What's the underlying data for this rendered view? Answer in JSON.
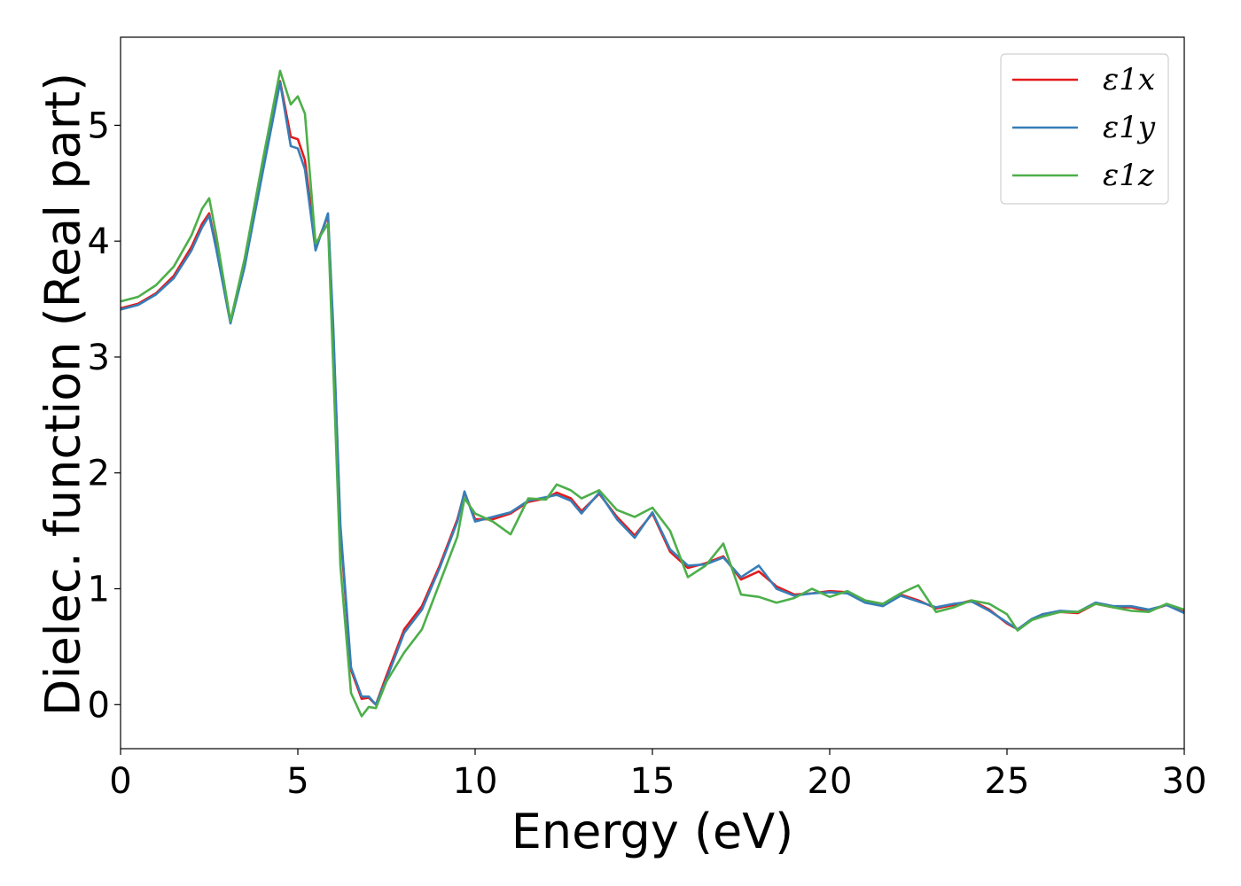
{
  "chart_data": {
    "type": "line",
    "xlabel": "Energy (eV)",
    "ylabel": "Dielec. function (Real part)",
    "xlim": [
      0,
      30
    ],
    "ylim": [
      -0.38,
      5.76
    ],
    "xticks": [
      "0",
      "5",
      "10",
      "15",
      "20",
      "25",
      "30"
    ],
    "yticks": [
      "0",
      "1",
      "2",
      "3",
      "4",
      "5"
    ],
    "grid": false,
    "legend_position": "top-right",
    "series": [
      {
        "name": "ε1x",
        "color": "#e41a1c",
        "x": [
          0,
          0.5,
          1,
          1.5,
          2,
          2.3,
          2.5,
          2.7,
          3.1,
          3.5,
          4,
          4.5,
          4.8,
          5.0,
          5.2,
          5.5,
          5.85,
          6.0,
          6.2,
          6.5,
          6.8,
          7.0,
          7.2,
          7.5,
          8.0,
          8.5,
          9.0,
          9.5,
          9.7,
          10.0,
          10.5,
          11.0,
          11.5,
          12.0,
          12.3,
          12.7,
          13.0,
          13.5,
          14.0,
          14.5,
          15.0,
          15.5,
          16.0,
          16.5,
          17.0,
          17.5,
          18.0,
          18.5,
          19.0,
          19.5,
          20.0,
          20.5,
          21.0,
          21.5,
          22.0,
          22.5,
          23.0,
          23.5,
          24.0,
          24.5,
          25.0,
          25.3,
          25.7,
          26.0,
          26.5,
          27.0,
          27.5,
          28.0,
          28.5,
          29.0,
          29.5,
          30.0
        ],
        "y": [
          3.42,
          3.46,
          3.55,
          3.7,
          3.95,
          4.15,
          4.24,
          3.95,
          3.3,
          3.8,
          4.6,
          5.38,
          4.9,
          4.88,
          4.7,
          3.95,
          4.22,
          3.2,
          1.5,
          0.3,
          0.05,
          0.06,
          0.0,
          0.25,
          0.65,
          0.85,
          1.2,
          1.6,
          1.83,
          1.6,
          1.6,
          1.65,
          1.75,
          1.78,
          1.83,
          1.78,
          1.67,
          1.82,
          1.62,
          1.46,
          1.65,
          1.32,
          1.18,
          1.22,
          1.28,
          1.08,
          1.15,
          1.02,
          0.95,
          0.96,
          0.98,
          0.97,
          0.89,
          0.86,
          0.95,
          0.9,
          0.83,
          0.86,
          0.9,
          0.82,
          0.7,
          0.65,
          0.73,
          0.78,
          0.8,
          0.79,
          0.87,
          0.84,
          0.84,
          0.81,
          0.86,
          0.8
        ]
      },
      {
        "name": "ε1y",
        "color": "#377eb8",
        "x": [
          0,
          0.5,
          1,
          1.5,
          2,
          2.3,
          2.5,
          2.7,
          3.1,
          3.5,
          4,
          4.5,
          4.8,
          5.0,
          5.2,
          5.5,
          5.85,
          6.0,
          6.2,
          6.5,
          6.8,
          7.0,
          7.2,
          7.5,
          8.0,
          8.5,
          9.0,
          9.5,
          9.7,
          10.0,
          10.5,
          11.0,
          11.5,
          12.0,
          12.3,
          12.7,
          13.0,
          13.5,
          14.0,
          14.5,
          15.0,
          15.5,
          16.0,
          16.5,
          17.0,
          17.5,
          18.0,
          18.5,
          19.0,
          19.5,
          20.0,
          20.5,
          21.0,
          21.5,
          22.0,
          22.5,
          23.0,
          23.5,
          24.0,
          24.5,
          25.0,
          25.3,
          25.7,
          26.0,
          26.5,
          27.0,
          27.5,
          28.0,
          28.5,
          29.0,
          29.5,
          30.0
        ],
        "y": [
          3.41,
          3.45,
          3.54,
          3.68,
          3.92,
          4.12,
          4.22,
          3.93,
          3.29,
          3.78,
          4.58,
          5.37,
          4.82,
          4.8,
          4.62,
          3.92,
          4.24,
          3.25,
          1.55,
          0.32,
          0.07,
          0.07,
          0.0,
          0.22,
          0.62,
          0.82,
          1.18,
          1.58,
          1.84,
          1.58,
          1.62,
          1.66,
          1.76,
          1.79,
          1.81,
          1.76,
          1.65,
          1.83,
          1.6,
          1.44,
          1.66,
          1.34,
          1.2,
          1.21,
          1.27,
          1.1,
          1.2,
          1.0,
          0.94,
          0.96,
          0.97,
          0.96,
          0.88,
          0.85,
          0.94,
          0.89,
          0.84,
          0.87,
          0.89,
          0.81,
          0.71,
          0.65,
          0.74,
          0.78,
          0.81,
          0.8,
          0.88,
          0.85,
          0.85,
          0.82,
          0.86,
          0.79
        ]
      },
      {
        "name": "ε1z",
        "color": "#4daf4a",
        "x": [
          0,
          0.5,
          1,
          1.5,
          2,
          2.3,
          2.5,
          2.7,
          3.1,
          3.5,
          4,
          4.5,
          4.8,
          5.0,
          5.2,
          5.5,
          5.85,
          6.0,
          6.2,
          6.5,
          6.8,
          7.0,
          7.2,
          7.5,
          8.0,
          8.5,
          9.0,
          9.5,
          9.7,
          10.0,
          10.5,
          11.0,
          11.5,
          12.0,
          12.3,
          12.7,
          13.0,
          13.5,
          14.0,
          14.5,
          15.0,
          15.5,
          16.0,
          16.5,
          17.0,
          17.5,
          18.0,
          18.5,
          19.0,
          19.5,
          20.0,
          20.5,
          21.0,
          21.5,
          22.0,
          22.5,
          23.0,
          23.5,
          24.0,
          24.5,
          25.0,
          25.3,
          25.7,
          26.0,
          26.5,
          27.0,
          27.5,
          28.0,
          28.5,
          29.0,
          29.5,
          30.0
        ],
        "y": [
          3.48,
          3.52,
          3.62,
          3.78,
          4.05,
          4.28,
          4.37,
          4.05,
          3.31,
          3.85,
          4.68,
          5.47,
          5.18,
          5.25,
          5.1,
          3.98,
          4.15,
          2.9,
          1.2,
          0.1,
          -0.1,
          -0.02,
          -0.03,
          0.2,
          0.45,
          0.65,
          1.05,
          1.45,
          1.78,
          1.65,
          1.58,
          1.47,
          1.78,
          1.77,
          1.9,
          1.85,
          1.78,
          1.85,
          1.68,
          1.62,
          1.7,
          1.5,
          1.1,
          1.2,
          1.39,
          0.95,
          0.93,
          0.88,
          0.92,
          1.0,
          0.93,
          0.98,
          0.9,
          0.87,
          0.96,
          1.03,
          0.8,
          0.84,
          0.9,
          0.87,
          0.78,
          0.64,
          0.73,
          0.76,
          0.8,
          0.8,
          0.87,
          0.84,
          0.81,
          0.8,
          0.87,
          0.82
        ]
      }
    ]
  }
}
